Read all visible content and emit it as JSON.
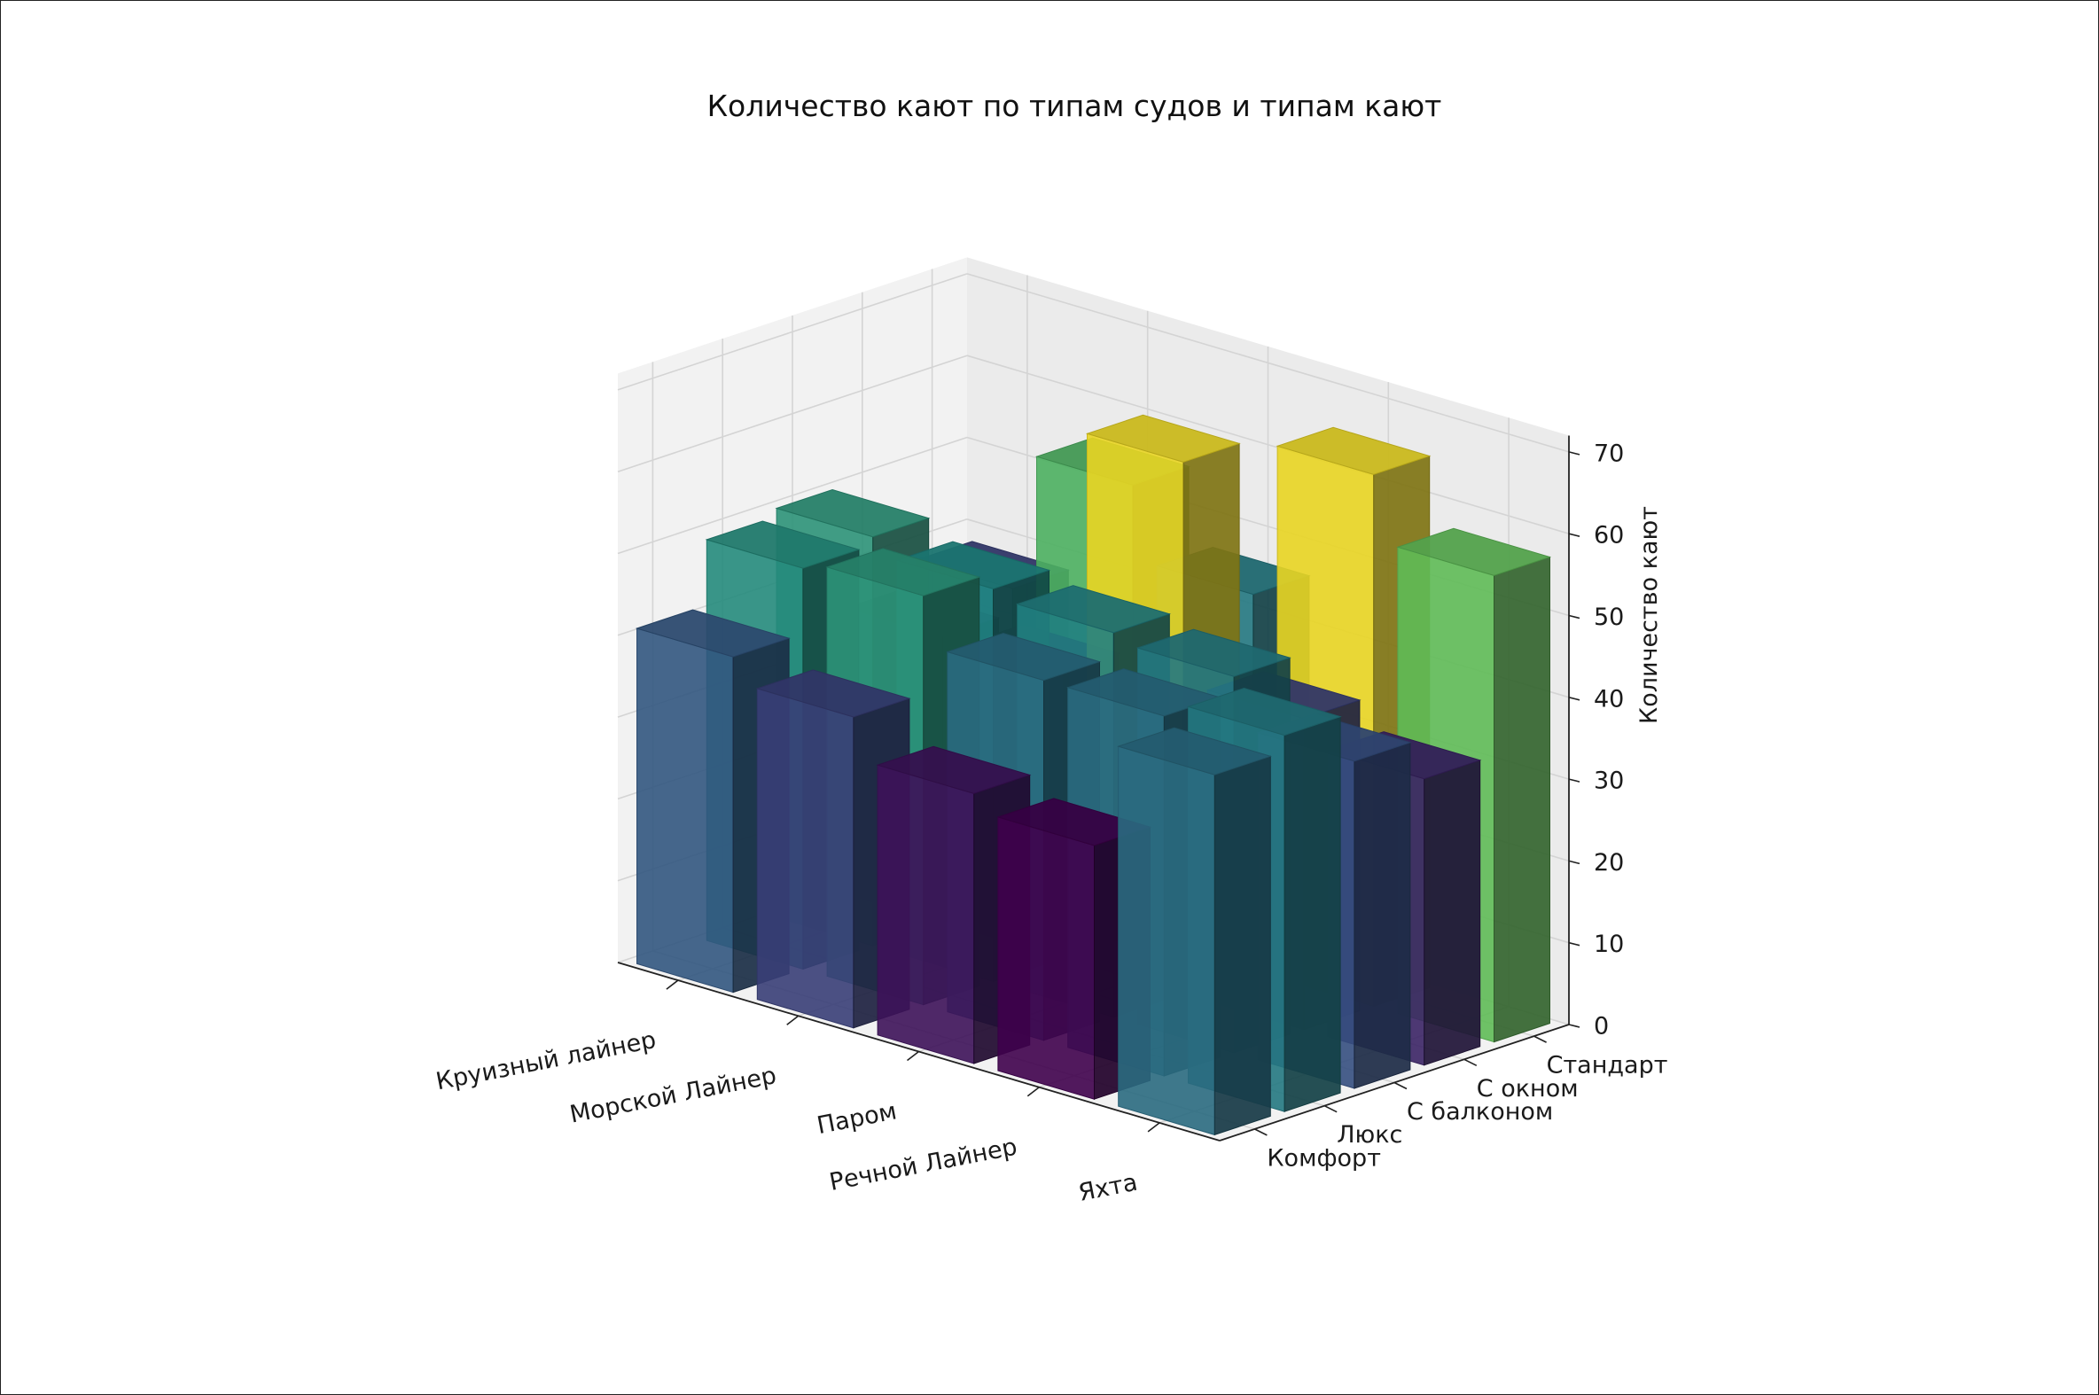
{
  "chart_data": {
    "type": "bar3d",
    "title": "Количество кают по типам судов и типам кают",
    "xlabel": "",
    "ylabel": "",
    "zlabel": "Количество кают",
    "x_categories": [
      "Круизный лайнер",
      "Морской Лайнер",
      "Паром",
      "Речной Лайнер",
      "Яхта"
    ],
    "y_categories": [
      "Комфорт",
      "Люкс",
      "С балконом",
      "С окном",
      "Стандарт"
    ],
    "z_ticks": [
      0,
      10,
      20,
      30,
      40,
      50,
      60,
      70
    ],
    "zlim": [
      0,
      72
    ],
    "grid": true,
    "colormap": "viridis",
    "values": [
      [
        41,
        49,
        50,
        35,
        38
      ],
      [
        38,
        50,
        48,
        35,
        55
      ],
      [
        33,
        44,
        47,
        65,
        46
      ],
      [
        31,
        44,
        46,
        38,
        65
      ],
      [
        44,
        46,
        40,
        35,
        57
      ]
    ]
  }
}
